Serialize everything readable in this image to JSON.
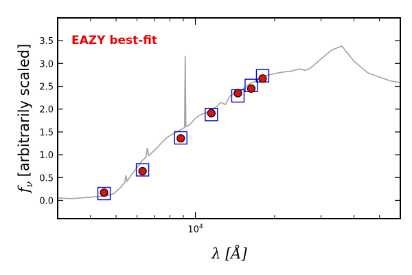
{
  "chart_data": {
    "type": "line",
    "annotation": "EAZY best-fit",
    "xlabel": "λ [Å]",
    "ylabel": "f_ν [arbitrarily scaled]",
    "x_scale": "log",
    "xlim": [
      3000,
      60000
    ],
    "ylim": [
      -0.4,
      4.0
    ],
    "y_ticks": [
      0.0,
      0.5,
      1.0,
      1.5,
      2.0,
      2.5,
      3.0,
      3.5
    ],
    "y_tick_labels": [
      "0.0",
      "0.5",
      "1.0",
      "1.5",
      "2.0",
      "2.5",
      "3.0",
      "3.5"
    ],
    "x_tick_labels": [
      {
        "value": 10000,
        "base": "10",
        "exp": "4"
      }
    ],
    "colors": {
      "template": "#a0a0a0",
      "model_box": "#0000dd",
      "point_fill": "#dd1111",
      "point_edge": "#000000",
      "annotation": "#ee0000"
    },
    "series": [
      {
        "kind": "template",
        "x": [
          3000,
          3400,
          3800,
          4200,
          4600,
          4900,
          5200,
          5400,
          5450,
          5500,
          5700,
          6000,
          6300,
          6500,
          6563,
          6650,
          7000,
          7500,
          7800,
          8000,
          8500,
          9000,
          9100,
          9150,
          9200,
          9500,
          10000,
          10500,
          11000,
          11500,
          12000,
          12500,
          13000,
          13500,
          14000,
          15000,
          16000,
          17000,
          18000,
          19000,
          20000,
          21000,
          22000,
          23000,
          24000,
          25000,
          26000,
          27000,
          28000,
          30000,
          33000,
          36000,
          40000,
          45000,
          50000,
          55000,
          60000
        ],
        "y": [
          0.05,
          0.04,
          0.06,
          0.08,
          0.1,
          0.15,
          0.28,
          0.4,
          0.55,
          0.42,
          0.55,
          0.72,
          0.88,
          0.95,
          1.15,
          0.98,
          1.1,
          1.28,
          1.38,
          1.42,
          1.5,
          1.58,
          1.6,
          3.17,
          1.62,
          1.65,
          1.8,
          1.88,
          1.92,
          2.0,
          2.05,
          2.15,
          2.1,
          2.28,
          2.35,
          2.42,
          2.55,
          2.62,
          2.72,
          2.75,
          2.78,
          2.8,
          2.82,
          2.83,
          2.86,
          2.88,
          2.85,
          2.88,
          2.95,
          3.1,
          3.3,
          3.38,
          3.05,
          2.8,
          2.7,
          2.62,
          2.58
        ]
      },
      {
        "kind": "model_photometry",
        "x": [
          4500,
          6300,
          8800,
          11500,
          14500,
          16300,
          18000
        ],
        "y": [
          0.15,
          0.67,
          1.37,
          1.88,
          2.29,
          2.52,
          2.73
        ]
      },
      {
        "kind": "observed_photometry",
        "x": [
          4500,
          6300,
          8800,
          11500,
          14500,
          16300,
          18000
        ],
        "y": [
          0.17,
          0.64,
          1.36,
          1.91,
          2.35,
          2.45,
          2.67
        ]
      }
    ]
  }
}
